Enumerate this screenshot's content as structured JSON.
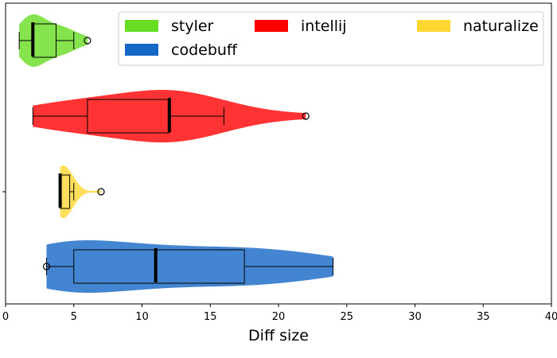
{
  "chart_data": {
    "type": "violin",
    "orientation": "horizontal",
    "title": "",
    "xlabel": "Diff size",
    "ylabel": "",
    "xlim": [
      0,
      40
    ],
    "xticks": [
      0,
      5,
      10,
      15,
      20,
      25,
      30,
      35,
      40
    ],
    "grid": false,
    "legend_placement": "top-right",
    "series": [
      {
        "name": "styler",
        "color": "#66dd22",
        "box": {
          "min": 1,
          "q1": 2,
          "median": 2,
          "q3": 3.7,
          "max": 5
        },
        "mean": 2,
        "outliers": [
          6
        ],
        "extent": [
          1,
          6
        ]
      },
      {
        "name": "intellij",
        "color": "#ff0000",
        "box": {
          "min": 2,
          "q1": 6,
          "median": 12,
          "q3": 12,
          "max": 16
        },
        "mean": 12,
        "outliers": [
          22
        ],
        "extent": [
          2,
          22
        ]
      },
      {
        "name": "naturalize",
        "color": "#ffd732",
        "box": {
          "min": 4,
          "q1": 4,
          "median": 4,
          "q3": 4.7,
          "max": 5
        },
        "mean": 4,
        "outliers": [
          7
        ],
        "extent": [
          4,
          7
        ]
      },
      {
        "name": "codebuff",
        "color": "#1566c6",
        "box": {
          "min": 3,
          "q1": 5,
          "median": 11,
          "q3": 17.5,
          "max": 24
        },
        "mean": 11,
        "outliers": [
          3
        ],
        "extent": [
          3,
          24
        ]
      }
    ]
  }
}
